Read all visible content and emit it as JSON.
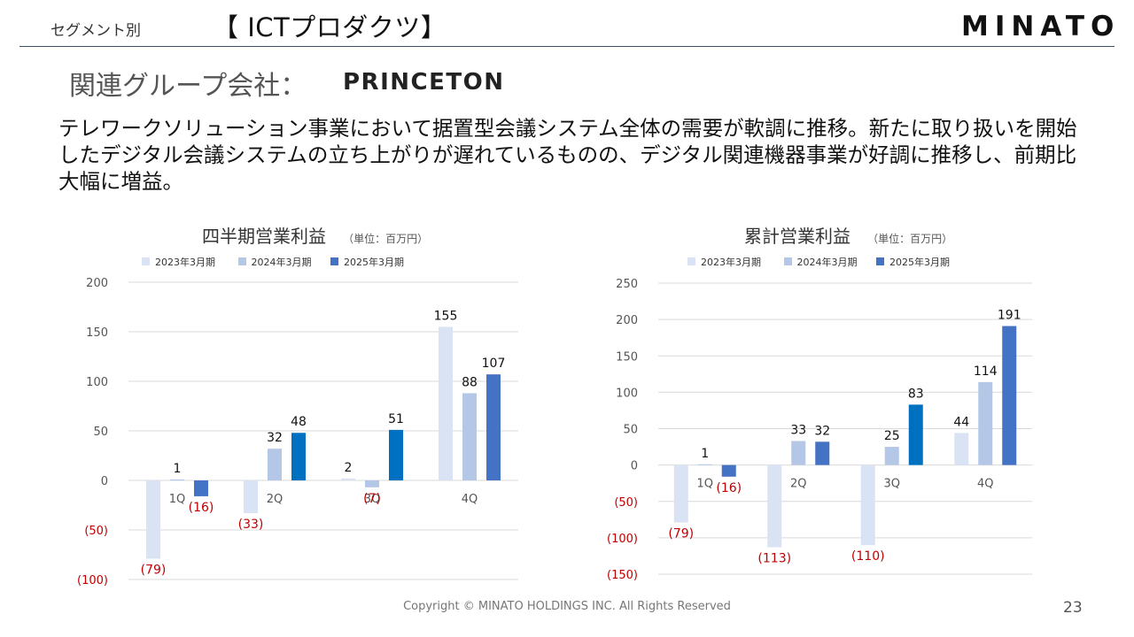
{
  "header": {
    "segment_label": "セグメント別",
    "title": "【 ICTプロダクツ】",
    "logo_text": "MINATO"
  },
  "subheading": {
    "text": "関連グループ会社：",
    "company_logo_text": "PRINCETON"
  },
  "body_text": "テレワークソリューション事業において据置型会議システム全体の需要が軟調に推移。新たに取り扱いを開始したデジタル会議システムの立ち上がりが遅れているものの、デジタル関連機器事業が好調に推移し、前期比大幅に増益。",
  "footer": {
    "copyright": "Copyright © MINATO HOLDINGS INC. All Rights Reserved",
    "page_number": "23"
  },
  "colors": {
    "s2023": "#dae3f3",
    "s2024": "#b4c7e7",
    "s2025": "#4472c4",
    "s2025_alt": "#0070c0",
    "negative_label": "#c00000",
    "grid": "#d9d9d9"
  },
  "chart_data": [
    {
      "type": "bar",
      "title": "四半期営業利益",
      "unit": "（単位：百万円）",
      "categories": [
        "1Q",
        "2Q",
        "3Q",
        "4Q"
      ],
      "ylim": [
        -100,
        200
      ],
      "yticks": [
        200,
        150,
        100,
        50,
        0,
        -50,
        -100
      ],
      "ytick_labels": [
        "200",
        "150",
        "100",
        "50",
        "0",
        "(50)",
        "(100)"
      ],
      "legend_position": "top",
      "series": [
        {
          "name": "2023年3月期",
          "values": [
            -79,
            -33,
            2,
            155
          ],
          "labels": [
            "(79)",
            "(33)",
            "2",
            "155"
          ]
        },
        {
          "name": "2024年3月期",
          "values": [
            1,
            32,
            -7,
            88
          ],
          "labels": [
            "1",
            "32",
            "(7)",
            "88"
          ]
        },
        {
          "name": "2025年3月期",
          "values": [
            -16,
            48,
            51,
            107
          ],
          "labels": [
            "(16)",
            "48",
            "51",
            "107"
          ]
        }
      ]
    },
    {
      "type": "bar",
      "title": "累計営業利益",
      "unit": "（単位：百万円）",
      "categories": [
        "1Q",
        "2Q",
        "3Q",
        "4Q"
      ],
      "ylim": [
        -150,
        250
      ],
      "yticks": [
        250,
        200,
        150,
        100,
        50,
        0,
        -50,
        -100,
        -150
      ],
      "ytick_labels": [
        "250",
        "200",
        "150",
        "100",
        "50",
        "0",
        "(50)",
        "(100)",
        "(150)"
      ],
      "legend_position": "top",
      "series": [
        {
          "name": "2023年3月期",
          "values": [
            -79,
            -113,
            -110,
            44
          ],
          "labels": [
            "(79)",
            "(113)",
            "(110)",
            "44"
          ]
        },
        {
          "name": "2024年3月期",
          "values": [
            1,
            33,
            25,
            114
          ],
          "labels": [
            "1",
            "33",
            "25",
            "114"
          ]
        },
        {
          "name": "2025年3月期",
          "values": [
            -16,
            32,
            83,
            191
          ],
          "labels": [
            "(16)",
            "32",
            "83",
            "191"
          ]
        }
      ]
    }
  ]
}
